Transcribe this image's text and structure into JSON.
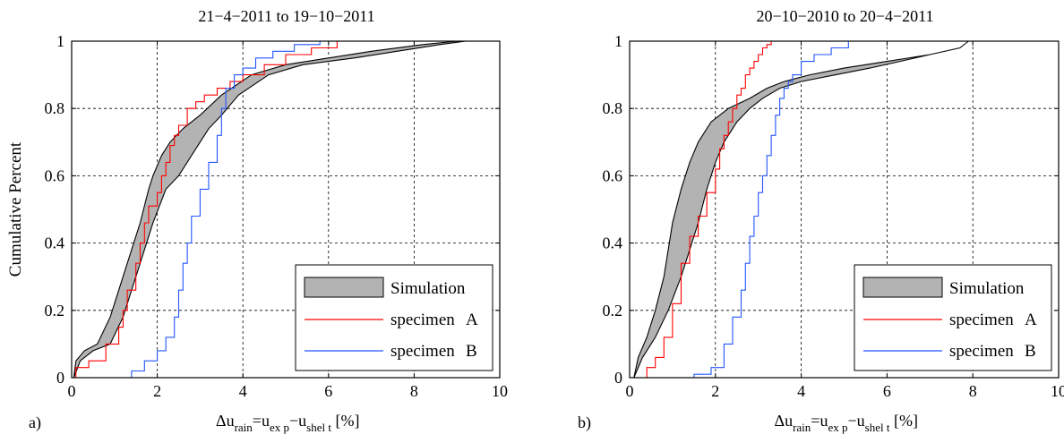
{
  "chart_data": [
    {
      "type": "line",
      "panel_label": "a)",
      "title": "21−4−2011 to 19−10−2011",
      "xlabel": "Δu",
      "xlabel_parts": {
        "delta": "Δu",
        "sub_rain": "rain",
        "eq": "=u",
        "sub_exp": "ex p",
        "minus": "−u",
        "sub_shelt": "shel t",
        "unit": " [%]"
      },
      "ylabel": "Cumulative Percent",
      "xlim": [
        0,
        10
      ],
      "ylim": [
        0,
        1
      ],
      "xticks": [
        "0",
        "2",
        "4",
        "6",
        "8",
        "10"
      ],
      "yticks": [
        "0",
        "0.2",
        "0.4",
        "0.6",
        "0.8",
        "1"
      ],
      "grid": true,
      "legend_position": "bottom-right",
      "legend": [
        {
          "label": "Simulation",
          "kind": "band",
          "color": "#b3b3b3"
        },
        {
          "label_name": "specimen",
          "label_id": "A",
          "kind": "line",
          "color": "#ff0000"
        },
        {
          "label_name": "specimen",
          "label_id": "B",
          "kind": "line",
          "color": "#2255ff"
        }
      ],
      "series": [
        {
          "kind": "band",
          "color": "#b3b3b3",
          "left_x": [
            0.05,
            0.1,
            0.3,
            0.6,
            0.9,
            1.1,
            1.3,
            1.6,
            1.8,
            1.9,
            2.1,
            2.3,
            2.6,
            3.0,
            3.5,
            4.2,
            5.0,
            6.0,
            7.0,
            8.2,
            9.0
          ],
          "right_x": [
            0.05,
            0.2,
            0.5,
            0.9,
            1.2,
            1.4,
            1.6,
            1.9,
            2.2,
            2.5,
            2.8,
            3.0,
            3.2,
            3.5,
            3.9,
            4.6,
            5.4,
            6.6,
            7.6,
            8.6,
            9.2
          ],
          "y": [
            0.0,
            0.05,
            0.08,
            0.1,
            0.18,
            0.26,
            0.34,
            0.46,
            0.56,
            0.6,
            0.66,
            0.7,
            0.74,
            0.78,
            0.84,
            0.9,
            0.93,
            0.95,
            0.97,
            0.99,
            1.0
          ]
        },
        {
          "kind": "line",
          "color": "#ff0000",
          "x": [
            0.0,
            0.1,
            0.4,
            0.8,
            1.1,
            1.2,
            1.3,
            1.5,
            1.6,
            1.7,
            1.8,
            2.0,
            2.1,
            2.2,
            2.3,
            2.4,
            2.5,
            2.7,
            2.9,
            3.1,
            3.4,
            3.7,
            4.0,
            4.5,
            5.0,
            5.6,
            6.2
          ],
          "y": [
            0.0,
            0.03,
            0.05,
            0.1,
            0.15,
            0.2,
            0.26,
            0.34,
            0.4,
            0.46,
            0.51,
            0.55,
            0.6,
            0.64,
            0.69,
            0.72,
            0.75,
            0.8,
            0.82,
            0.84,
            0.86,
            0.88,
            0.9,
            0.93,
            0.96,
            0.98,
            1.0
          ]
        },
        {
          "kind": "line",
          "color": "#2255ff",
          "x": [
            1.3,
            1.4,
            1.7,
            2.0,
            2.2,
            2.4,
            2.5,
            2.6,
            2.7,
            2.8,
            3.0,
            3.2,
            3.4,
            3.5,
            3.6,
            3.8,
            4.0,
            4.3,
            4.7,
            5.2,
            5.8,
            6.2
          ],
          "y": [
            0.0,
            0.02,
            0.05,
            0.08,
            0.12,
            0.18,
            0.26,
            0.34,
            0.4,
            0.48,
            0.56,
            0.64,
            0.72,
            0.8,
            0.86,
            0.9,
            0.92,
            0.95,
            0.97,
            0.99,
            1.0,
            1.0
          ]
        }
      ]
    },
    {
      "type": "line",
      "panel_label": "b)",
      "title": "20−10−2010 to 20−4−2011",
      "xlabel": "Δu",
      "xlabel_parts": {
        "delta": "Δu",
        "sub_rain": "rain",
        "eq": "=u",
        "sub_exp": "ex p",
        "minus": "−u",
        "sub_shelt": "shel t",
        "unit": " [%]"
      },
      "ylabel": "",
      "xlim": [
        0,
        10
      ],
      "ylim": [
        0,
        1
      ],
      "xticks": [
        "0",
        "2",
        "4",
        "6",
        "8",
        "10"
      ],
      "yticks": [
        "0",
        "0.2",
        "0.4",
        "0.6",
        "0.8",
        "1"
      ],
      "grid": true,
      "legend_position": "bottom-right",
      "legend": [
        {
          "label": "Simulation",
          "kind": "band",
          "color": "#b3b3b3"
        },
        {
          "label_name": "specimen",
          "label_id": "A",
          "kind": "line",
          "color": "#ff0000"
        },
        {
          "label_name": "specimen",
          "label_id": "B",
          "kind": "line",
          "color": "#2255ff"
        }
      ],
      "series": [
        {
          "kind": "band",
          "color": "#b3b3b3",
          "left_x": [
            0.1,
            0.2,
            0.4,
            0.6,
            0.8,
            0.9,
            1.0,
            1.2,
            1.4,
            1.6,
            1.9,
            2.3,
            2.8,
            3.2,
            3.6,
            4.2,
            5.0,
            6.0,
            7.0,
            7.7,
            7.9
          ],
          "right_x": [
            0.1,
            0.3,
            0.6,
            0.9,
            1.2,
            1.4,
            1.6,
            1.8,
            2.0,
            2.2,
            2.5,
            2.8,
            3.1,
            3.5,
            4.0,
            4.8,
            5.6,
            6.3,
            7.0,
            7.7,
            7.9
          ],
          "y": [
            0.0,
            0.06,
            0.12,
            0.2,
            0.3,
            0.38,
            0.46,
            0.56,
            0.64,
            0.7,
            0.76,
            0.8,
            0.83,
            0.86,
            0.88,
            0.9,
            0.92,
            0.94,
            0.96,
            0.98,
            1.0
          ]
        },
        {
          "kind": "line",
          "color": "#ff0000",
          "x": [
            0.2,
            0.4,
            0.6,
            0.8,
            1.0,
            1.2,
            1.4,
            1.6,
            1.8,
            2.0,
            2.1,
            2.2,
            2.3,
            2.4,
            2.5,
            2.6,
            2.7,
            2.8,
            2.9,
            3.0,
            3.1,
            3.2,
            3.3,
            3.5
          ],
          "y": [
            0.0,
            0.03,
            0.06,
            0.12,
            0.22,
            0.34,
            0.42,
            0.48,
            0.55,
            0.62,
            0.68,
            0.72,
            0.76,
            0.8,
            0.84,
            0.86,
            0.9,
            0.92,
            0.94,
            0.96,
            0.98,
            0.99,
            1.0,
            1.0
          ]
        },
        {
          "kind": "line",
          "color": "#2255ff",
          "x": [
            1.2,
            1.5,
            1.9,
            2.2,
            2.4,
            2.6,
            2.7,
            2.8,
            2.9,
            3.0,
            3.1,
            3.2,
            3.3,
            3.4,
            3.5,
            3.6,
            3.7,
            3.8,
            4.0,
            4.3,
            4.7,
            5.1
          ],
          "y": [
            0.0,
            0.01,
            0.03,
            0.1,
            0.18,
            0.26,
            0.34,
            0.42,
            0.48,
            0.55,
            0.6,
            0.66,
            0.72,
            0.78,
            0.83,
            0.86,
            0.88,
            0.9,
            0.94,
            0.96,
            0.98,
            1.0
          ]
        }
      ]
    }
  ]
}
